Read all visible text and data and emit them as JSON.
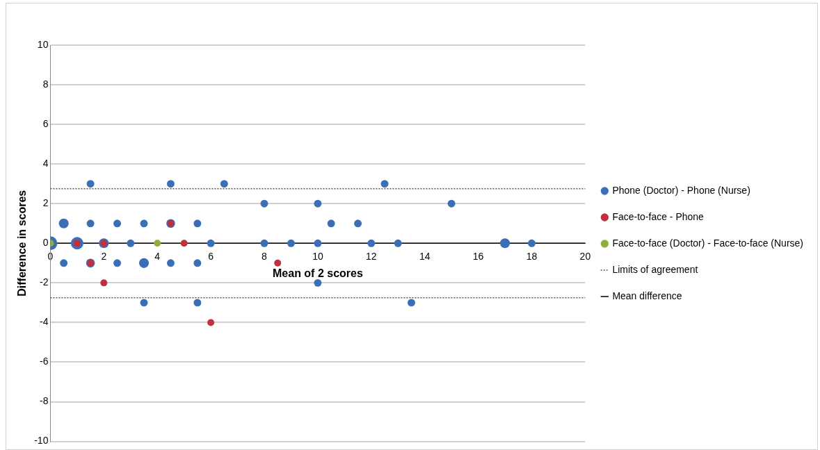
{
  "chart_data": {
    "type": "bubble",
    "xlabel": "Mean of 2 scores",
    "ylabel": "Difference in scores",
    "xlim": [
      0,
      20
    ],
    "xticks": [
      0,
      2,
      4,
      6,
      8,
      10,
      12,
      14,
      16,
      18,
      20
    ],
    "ylim": [
      -10,
      10
    ],
    "yticks": [
      -10,
      -8,
      -6,
      -4,
      -2,
      0,
      2,
      4,
      6,
      8,
      10
    ],
    "grid": "y",
    "legend": "right",
    "marker": "circle",
    "series": [
      {
        "name": "Phone (Doctor) - Phone (Nurse)",
        "color": "#3a6fb7",
        "x": [
          1.5,
          4.5,
          6.5,
          12.5,
          8,
          10,
          15,
          0.5,
          1.5,
          2.5,
          3.5,
          4.5,
          5.5,
          10.5,
          11.5,
          0,
          1,
          2,
          3,
          6,
          8,
          9,
          10,
          12,
          13,
          17,
          18,
          0.5,
          1.5,
          2.5,
          3.5,
          4.5,
          5.5,
          10,
          3.5,
          5.5,
          13.5
        ],
        "values": [
          3,
          3,
          3,
          3,
          2,
          2,
          2,
          1,
          1,
          1,
          1,
          1,
          1,
          1,
          1,
          0,
          0,
          0,
          0,
          0,
          0,
          0,
          0,
          0,
          0,
          0,
          0,
          -1,
          -1,
          -1,
          -1,
          -1,
          -1,
          -2,
          -3,
          -3,
          -3
        ],
        "sizes": [
          0.3,
          0.3,
          0.3,
          0.3,
          0.3,
          0.3,
          0.3,
          0.5,
          0.3,
          0.3,
          0.3,
          0.4,
          0.3,
          0.3,
          0.3,
          1,
          0.8,
          0.5,
          0.3,
          0.3,
          0.3,
          0.3,
          0.3,
          0.3,
          0.3,
          0.5,
          0.3,
          0.3,
          0.4,
          0.3,
          0.5,
          0.3,
          0.3,
          0.3,
          0.3,
          0.3,
          0.3
        ]
      },
      {
        "name": "Face-to-face - Phone",
        "color": "#c0303f",
        "x": [
          1,
          2,
          1.5,
          2,
          4.5,
          5,
          6,
          8.5
        ],
        "values": [
          0,
          0,
          -1,
          -2,
          1,
          0,
          -4,
          -1
        ],
        "sizes": [
          0.25,
          0.25,
          0.25,
          0.25,
          0.25,
          0.25,
          0.25,
          0.25
        ]
      },
      {
        "name": "Face-to-face (Doctor) - Face-to-face (Nurse)",
        "color": "#8fae3c",
        "x": [
          0,
          4
        ],
        "values": [
          0,
          0
        ],
        "sizes": [
          0.25,
          0.25
        ]
      }
    ],
    "ref_lines": [
      {
        "axis": "y",
        "value": 2.75,
        "label": "Limits of agreement",
        "color": "#555555",
        "line_style": "dotted"
      },
      {
        "axis": "y",
        "value": -2.75,
        "color": "#555555",
        "line_style": "dotted"
      },
      {
        "axis": "y",
        "value": 0,
        "label": "Mean difference",
        "color": "#000000",
        "line_style": "solid"
      }
    ]
  }
}
